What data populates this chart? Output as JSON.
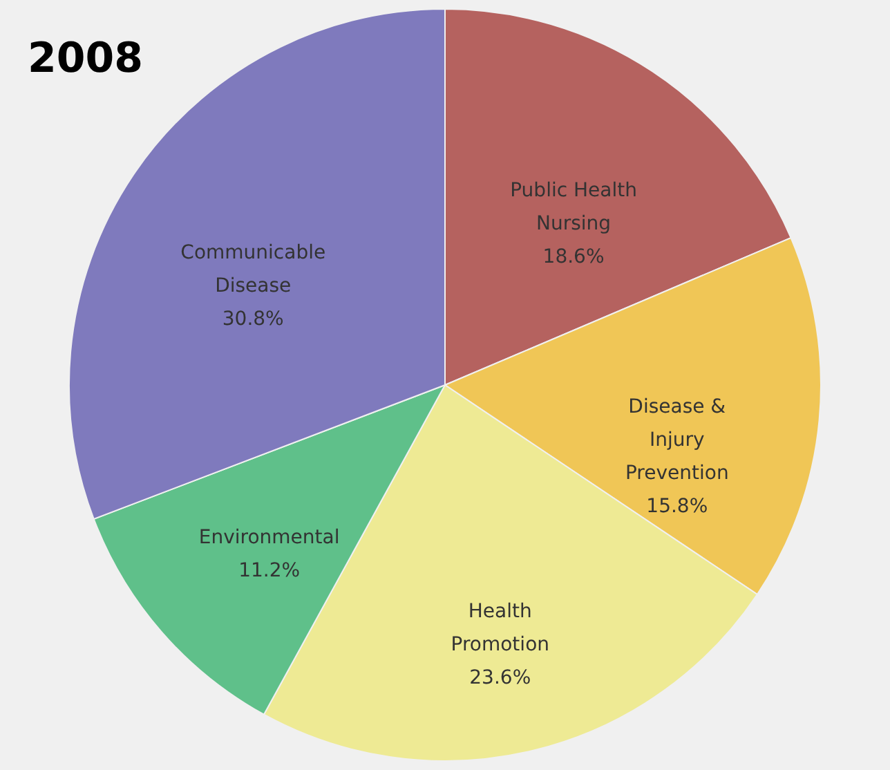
{
  "chart_data": {
    "type": "pie",
    "title": "2008",
    "categories": [
      "Public Health Nursing",
      "Disease & Injury Prevention",
      "Health Promotion",
      "Environmental",
      "Communicable Disease"
    ],
    "values": [
      18.6,
      15.8,
      23.6,
      11.2,
      30.8
    ],
    "value_labels": [
      "18.6%",
      "15.8%",
      "23.6%",
      "11.2%",
      "30.8%"
    ],
    "colors": [
      "#b5625f",
      "#f0c656",
      "#eeea94",
      "#5fc08a",
      "#7f7abd"
    ]
  }
}
